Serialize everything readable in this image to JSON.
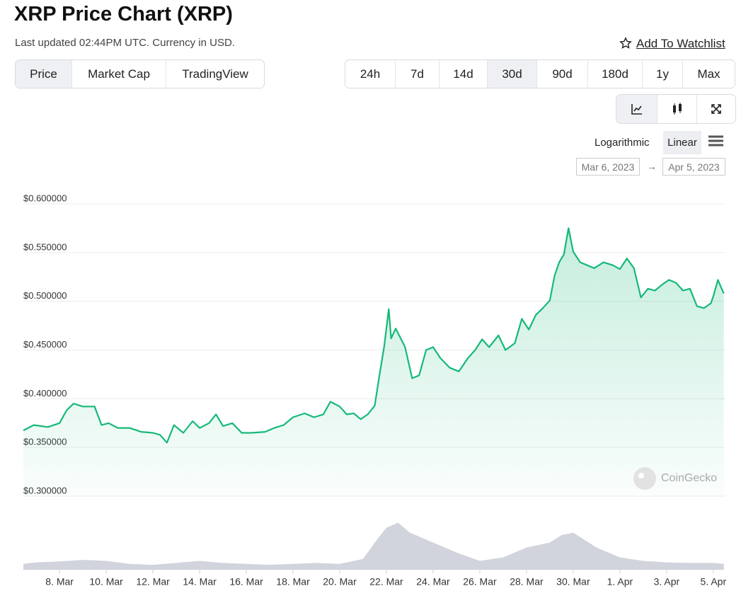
{
  "ui": {
    "title": "XRP Price Chart (XRP)",
    "updated": "Last updated 02:44PM UTC. Currency in USD.",
    "watchlist": "Add To Watchlist",
    "tabs": [
      "Price",
      "Market Cap",
      "TradingView"
    ],
    "ranges": [
      "24h",
      "7d",
      "14d",
      "30d",
      "90d",
      "180d",
      "1y",
      "Max"
    ],
    "scales": [
      "Logarithmic",
      "Linear"
    ],
    "date_from": "Mar 6, 2023",
    "date_arrow": "→",
    "date_to": "Apr 5, 2023",
    "watermark": "CoinGecko"
  },
  "chart_data": {
    "type": "line",
    "xlim": [
      6.45,
      36.52
    ],
    "xticks": [
      {
        "value": 8,
        "label": "8. Mar"
      },
      {
        "value": 10,
        "label": "10. Mar"
      },
      {
        "value": 12,
        "label": "12. Mar"
      },
      {
        "value": 14,
        "label": "14. Mar"
      },
      {
        "value": 16,
        "label": "16. Mar"
      },
      {
        "value": 18,
        "label": "18. Mar"
      },
      {
        "value": 20,
        "label": "20. Mar"
      },
      {
        "value": 22,
        "label": "22. Mar"
      },
      {
        "value": 24,
        "label": "24. Mar"
      },
      {
        "value": 26,
        "label": "26. Mar"
      },
      {
        "value": 28,
        "label": "28. Mar"
      },
      {
        "value": 30,
        "label": "30. Mar"
      },
      {
        "value": 32,
        "label": "1. Apr"
      },
      {
        "value": 34,
        "label": "3. Apr"
      },
      {
        "value": 36,
        "label": "5. Apr"
      }
    ],
    "ylim": [
      0.3,
      0.6
    ],
    "yticks": [
      {
        "value": 0.3,
        "label": "$0.300000"
      },
      {
        "value": 0.35,
        "label": "$0.350000"
      },
      {
        "value": 0.4,
        "label": "$0.400000"
      },
      {
        "value": 0.45,
        "label": "$0.450000"
      },
      {
        "value": 0.5,
        "label": "$0.500000"
      },
      {
        "value": 0.55,
        "label": "$0.550000"
      },
      {
        "value": 0.6,
        "label": "$0.600000"
      }
    ],
    "y2lim": [
      0,
      100
    ],
    "grid": true,
    "series": [
      {
        "color": "#16b979",
        "x": [
          6.45,
          6.9,
          7.5,
          8.0,
          8.3,
          8.6,
          9.0,
          9.5,
          9.8,
          10.1,
          10.5,
          11,
          11.5,
          12,
          12.3,
          12.6,
          12.9,
          13.3,
          13.7,
          14,
          14.4,
          14.7,
          15,
          15.4,
          15.8,
          16.2,
          16.8,
          17.2,
          17.6,
          18,
          18.5,
          18.9,
          19.3,
          19.6,
          20,
          20.3,
          20.6,
          20.9,
          21.2,
          21.5,
          21.7,
          21.9,
          22.1,
          22.2,
          22.4,
          22.8,
          23.1,
          23.4,
          23.7,
          24,
          24.3,
          24.7,
          25.1,
          25.5,
          25.8,
          26.1,
          26.4,
          26.8,
          27.1,
          27.5,
          27.8,
          28.1,
          28.4,
          28.7,
          29,
          29.2,
          29.4,
          29.6,
          29.8,
          30,
          30.3,
          30.6,
          30.9,
          31.3,
          31.7,
          32,
          32.3,
          32.6,
          32.9,
          33.2,
          33.5,
          33.8,
          34.1,
          34.4,
          34.7,
          35,
          35.3,
          35.6,
          35.9,
          36.0,
          36.2,
          36.45
        ],
        "values": [
          0.3675,
          0.373,
          0.371,
          0.375,
          0.388,
          0.395,
          0.392,
          0.392,
          0.373,
          0.375,
          0.37,
          0.37,
          0.366,
          0.365,
          0.363,
          0.355,
          0.373,
          0.365,
          0.377,
          0.37,
          0.375,
          0.384,
          0.372,
          0.375,
          0.365,
          0.365,
          0.366,
          0.37,
          0.373,
          0.381,
          0.385,
          0.381,
          0.384,
          0.397,
          0.392,
          0.384,
          0.385,
          0.379,
          0.384,
          0.393,
          0.424,
          0.453,
          0.492,
          0.462,
          0.472,
          0.453,
          0.421,
          0.424,
          0.45,
          0.453,
          0.442,
          0.432,
          0.428,
          0.442,
          0.45,
          0.461,
          0.453,
          0.465,
          0.45,
          0.457,
          0.482,
          0.471,
          0.486,
          0.493,
          0.501,
          0.526,
          0.54,
          0.548,
          0.575,
          0.551,
          0.54,
          0.537,
          0.534,
          0.54,
          0.537,
          0.533,
          0.544,
          0.534,
          0.504,
          0.513,
          0.511,
          0.517,
          0.522,
          0.519,
          0.511,
          0.513,
          0.495,
          0.493,
          0.498,
          0.505,
          0.522,
          0.508
        ]
      },
      {
        "color": "#d1d4dc",
        "axis": "y2",
        "x": [
          6.45,
          7,
          8,
          9,
          10,
          11,
          12,
          13,
          14,
          15,
          16,
          17,
          18,
          19,
          20,
          21,
          21.5,
          22,
          22.5,
          23,
          24,
          25,
          26,
          27,
          28,
          29,
          29.5,
          30,
          30.5,
          31,
          32,
          33,
          34,
          35,
          36,
          36.45
        ],
        "values": [
          12,
          15,
          17,
          20,
          18,
          12,
          10,
          14,
          18,
          14,
          12,
          10,
          12,
          14,
          12,
          22,
          55,
          85,
          95,
          75,
          55,
          35,
          18,
          25,
          45,
          55,
          70,
          75,
          60,
          45,
          25,
          18,
          15,
          14,
          14,
          12
        ]
      }
    ]
  }
}
